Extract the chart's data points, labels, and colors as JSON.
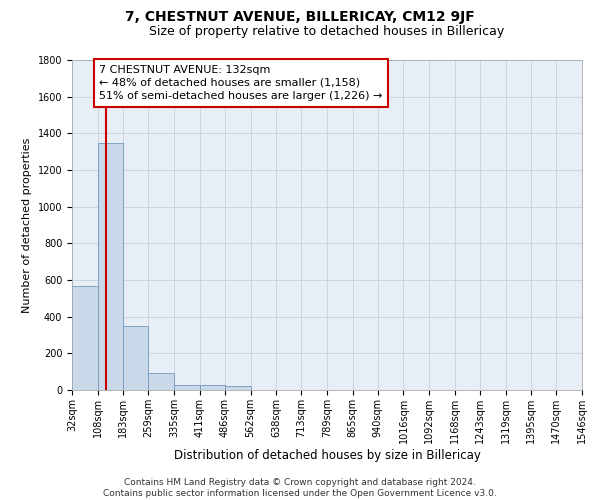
{
  "title": "7, CHESTNUT AVENUE, BILLERICAY, CM12 9JF",
  "subtitle": "Size of property relative to detached houses in Billericay",
  "xlabel": "Distribution of detached houses by size in Billericay",
  "ylabel": "Number of detached properties",
  "bin_edges": [
    32,
    108,
    183,
    259,
    335,
    411,
    486,
    562,
    638,
    713,
    789,
    865,
    940,
    1016,
    1092,
    1168,
    1243,
    1319,
    1395,
    1470,
    1546
  ],
  "bar_heights": [
    570,
    1350,
    350,
    95,
    30,
    25,
    20,
    0,
    0,
    0,
    0,
    0,
    0,
    0,
    0,
    0,
    0,
    0,
    0,
    0
  ],
  "bar_color": "#c9d9ea",
  "bar_edge_color": "#7099bb",
  "grid_color": "#ccd5e0",
  "background_color": "#e8eef5",
  "red_line_x": 132,
  "red_line_color": "#cc0000",
  "annotation_line1": "7 CHESTNUT AVENUE: 132sqm",
  "annotation_line2": "← 48% of detached houses are smaller (1,158)",
  "annotation_line3": "51% of semi-detached houses are larger (1,226) →",
  "annotation_box_color": "#ffffff",
  "annotation_box_edge": "#cc0000",
  "ylim": [
    0,
    1800
  ],
  "yticks": [
    0,
    200,
    400,
    600,
    800,
    1000,
    1200,
    1400,
    1600,
    1800
  ],
  "footer_text": "Contains HM Land Registry data © Crown copyright and database right 2024.\nContains public sector information licensed under the Open Government Licence v3.0.",
  "title_fontsize": 10,
  "subtitle_fontsize": 9,
  "xlabel_fontsize": 8.5,
  "ylabel_fontsize": 8,
  "tick_fontsize": 7,
  "annotation_fontsize": 8,
  "footer_fontsize": 6.5
}
